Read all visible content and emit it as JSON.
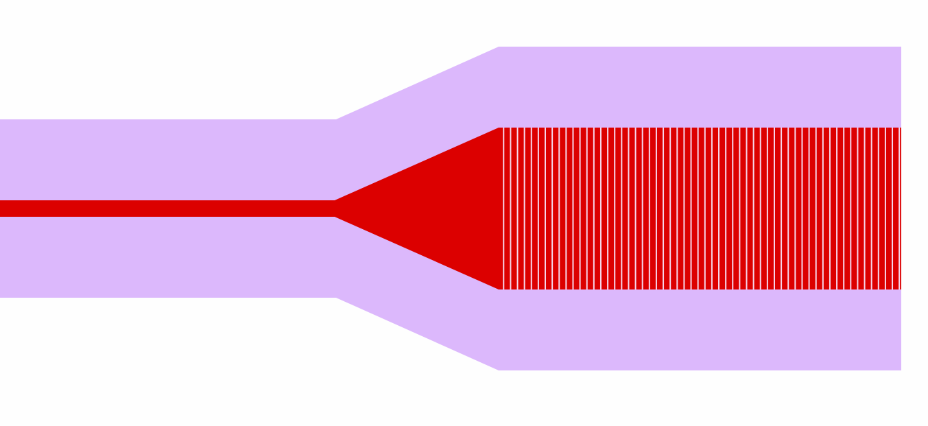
{
  "colors": {
    "background": "#fefefe",
    "cladding": "#dcb8fc",
    "core": "#dc0000",
    "grating_gap": "#f6d6ea"
  },
  "grating": {
    "line_count": 58
  }
}
